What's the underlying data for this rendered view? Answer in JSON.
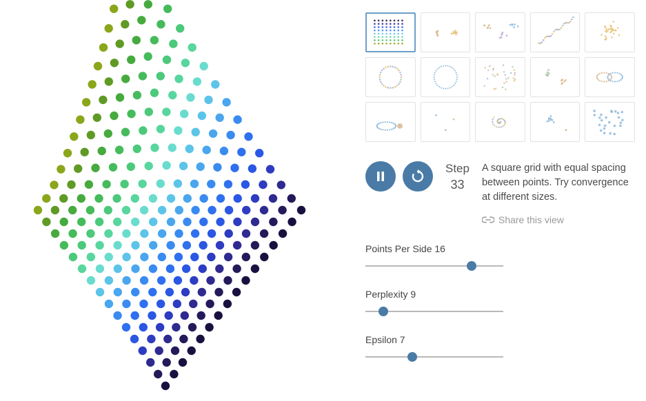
{
  "main_viz": {
    "type": "scatter",
    "grid_side": 16,
    "point_radius": 6.2,
    "background_color": "#ffffff",
    "colormap": "viridis",
    "colormap_stops": [
      [
        0.0,
        "#440154"
      ],
      [
        0.1,
        "#482475"
      ],
      [
        0.2,
        "#414487"
      ],
      [
        0.3,
        "#355f8d"
      ],
      [
        0.4,
        "#2a788e"
      ],
      [
        0.5,
        "#21918c"
      ],
      [
        0.6,
        "#22a884"
      ],
      [
        0.7,
        "#44bf70"
      ],
      [
        0.8,
        "#7ad151"
      ],
      [
        0.9,
        "#bddf26"
      ],
      [
        1.0,
        "#fde725"
      ]
    ],
    "row_colors": [
      "#1a1040",
      "#241a5a",
      "#2f2a90",
      "#2e3cc1",
      "#2a57e3",
      "#2f70ef",
      "#3a8bf0",
      "#4aa6ee",
      "#5cc4e8",
      "#6adccd",
      "#58d69e",
      "#4cc97a",
      "#45bb5b",
      "#46aa3e",
      "#5f9a25",
      "#8aa61a"
    ],
    "bounds": {
      "x_min": 30,
      "x_max": 450,
      "y_min": 30,
      "y_max": 560
    }
  },
  "controls": {
    "step_label": "Step",
    "step_value": "33",
    "pause_icon": "pause",
    "restart_icon": "restart",
    "button_bg": "#4a7ba6",
    "button_fg": "#ffffff"
  },
  "description": "A square grid with equal spacing between points. Try convergence at different sizes.",
  "share_label": "Share this view",
  "sliders": [
    {
      "label": "Points Per Side",
      "value": 16,
      "min": 2,
      "max": 20,
      "pos_pct": 77
    },
    {
      "label": "Perplexity",
      "value": 9,
      "min": 2,
      "max": 100,
      "pos_pct": 13
    },
    {
      "label": "Epsilon",
      "value": 7,
      "min": 1,
      "max": 20,
      "pos_pct": 34
    }
  ],
  "slider_track_color": "#b9b9b9",
  "slider_knob_color": "#4a7ba6",
  "thumbnails": [
    {
      "id": "grid",
      "selected": true
    },
    {
      "id": "two-clusters",
      "selected": false
    },
    {
      "id": "three-clusters",
      "selected": false
    },
    {
      "id": "diagonal",
      "selected": false
    },
    {
      "id": "gaussian",
      "selected": false
    },
    {
      "id": "circle",
      "selected": false
    },
    {
      "id": "ring",
      "selected": false
    },
    {
      "id": "noise",
      "selected": false
    },
    {
      "id": "blobs",
      "selected": false
    },
    {
      "id": "links",
      "selected": false
    },
    {
      "id": "ellipse",
      "selected": false
    },
    {
      "id": "sparse",
      "selected": false
    },
    {
      "id": "swirl",
      "selected": false
    },
    {
      "id": "cluster2",
      "selected": false
    },
    {
      "id": "random",
      "selected": false
    }
  ],
  "thumb_border": "#e2e2e2",
  "thumb_selected_border": "#6c9fc9",
  "palette_soft": [
    "#d9b88f",
    "#a8c6a8",
    "#c0a8d8",
    "#8fb8d9",
    "#e8c070"
  ]
}
